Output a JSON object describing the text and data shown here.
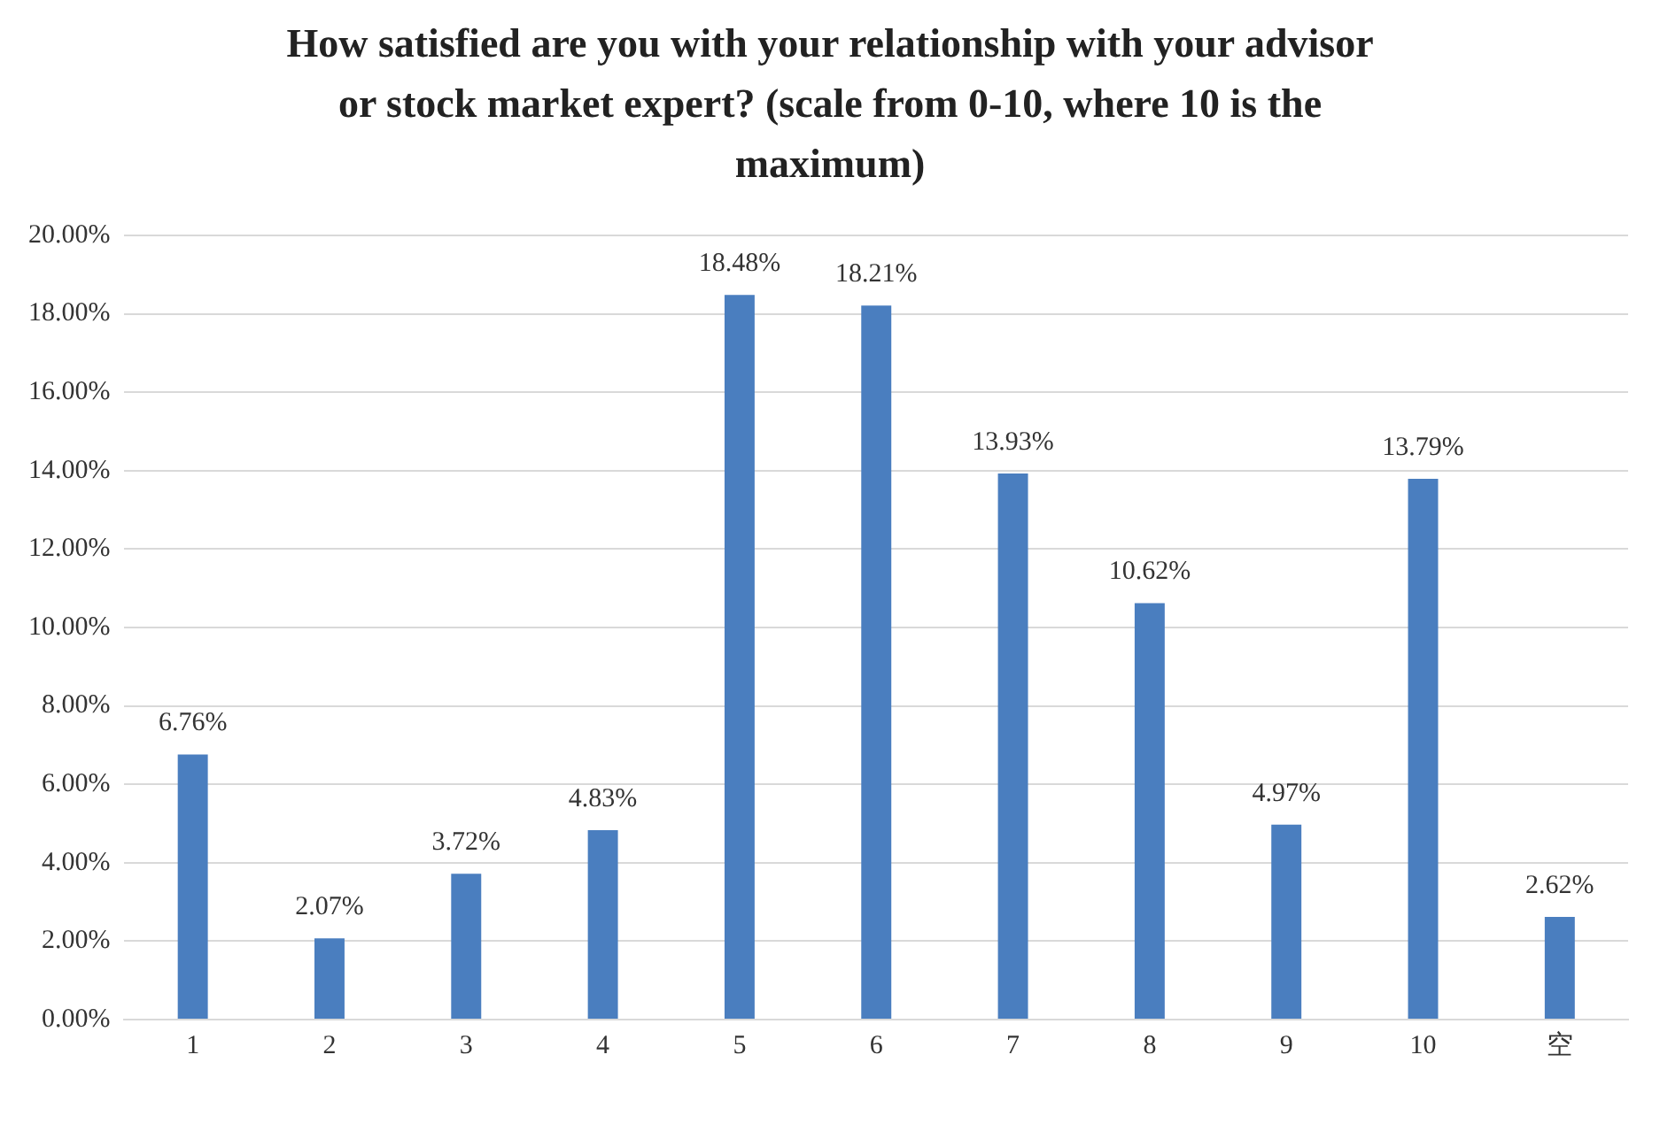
{
  "chart_data": {
    "type": "bar",
    "title": "How satisfied are you with your relationship with your advisor or stock market expert? (scale from 0-10, where 10 is the maximum)",
    "categories": [
      "1",
      "2",
      "3",
      "4",
      "5",
      "6",
      "7",
      "8",
      "9",
      "10",
      "空"
    ],
    "values": [
      6.76,
      2.07,
      3.72,
      4.83,
      18.48,
      18.21,
      13.93,
      10.62,
      4.97,
      13.79,
      2.62
    ],
    "value_labels": [
      "6.76%",
      "2.07%",
      "3.72%",
      "4.83%",
      "18.48%",
      "18.21%",
      "13.93%",
      "10.62%",
      "4.97%",
      "13.79%",
      "2.62%"
    ],
    "color": "#4a7ebf",
    "ylim": [
      0,
      20
    ],
    "yticks": [
      {
        "value": 0,
        "label": "0.00%"
      },
      {
        "value": 2,
        "label": "2.00%"
      },
      {
        "value": 4,
        "label": "4.00%"
      },
      {
        "value": 6,
        "label": "6.00%"
      },
      {
        "value": 8,
        "label": "8.00%"
      },
      {
        "value": 10,
        "label": "10.00%"
      },
      {
        "value": 12,
        "label": "12.00%"
      },
      {
        "value": 14,
        "label": "14.00%"
      },
      {
        "value": 16,
        "label": "16.00%"
      },
      {
        "value": 18,
        "label": "18.00%"
      },
      {
        "value": 20,
        "label": "20.00%"
      }
    ],
    "grid": "y"
  }
}
